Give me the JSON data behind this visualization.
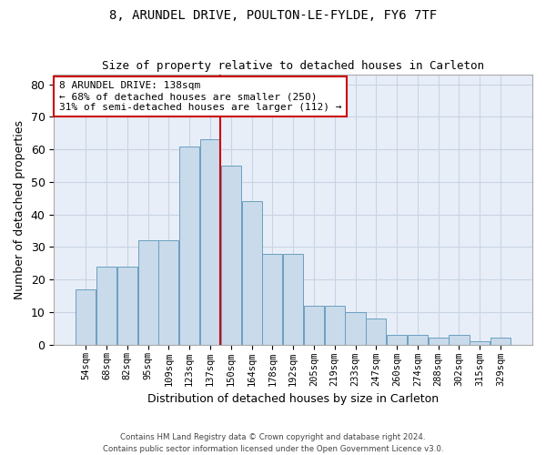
{
  "title1": "8, ARUNDEL DRIVE, POULTON-LE-FYLDE, FY6 7TF",
  "title2": "Size of property relative to detached houses in Carleton",
  "xlabel": "Distribution of detached houses by size in Carleton",
  "ylabel": "Number of detached properties",
  "footnote1": "Contains HM Land Registry data © Crown copyright and database right 2024.",
  "footnote2": "Contains public sector information licensed under the Open Government Licence v3.0.",
  "annotation_line1": "8 ARUNDEL DRIVE: 138sqm",
  "annotation_line2": "← 68% of detached houses are smaller (250)",
  "annotation_line3": "31% of semi-detached houses are larger (112) →",
  "categories": [
    "54sqm",
    "68sqm",
    "82sqm",
    "95sqm",
    "109sqm",
    "123sqm",
    "137sqm",
    "150sqm",
    "164sqm",
    "178sqm",
    "192sqm",
    "205sqm",
    "219sqm",
    "233sqm",
    "247sqm",
    "260sqm",
    "274sqm",
    "288sqm",
    "302sqm",
    "315sqm",
    "329sqm"
  ],
  "bar_heights": [
    17,
    24,
    24,
    32,
    32,
    61,
    63,
    55,
    44,
    28,
    28,
    12,
    12,
    10,
    8,
    3,
    3,
    2,
    3,
    1,
    2
  ],
  "bar_color": "#c9daea",
  "bar_edge_color": "#6a9fc0",
  "grid_color": "#c8d4e4",
  "background_color": "#e8eef8",
  "vline_color": "#cc0000",
  "annotation_box_color": "#cc0000",
  "vline_index": 6.5,
  "ylim": [
    0,
    83
  ],
  "yticks": [
    0,
    10,
    20,
    30,
    40,
    50,
    60,
    70,
    80
  ]
}
